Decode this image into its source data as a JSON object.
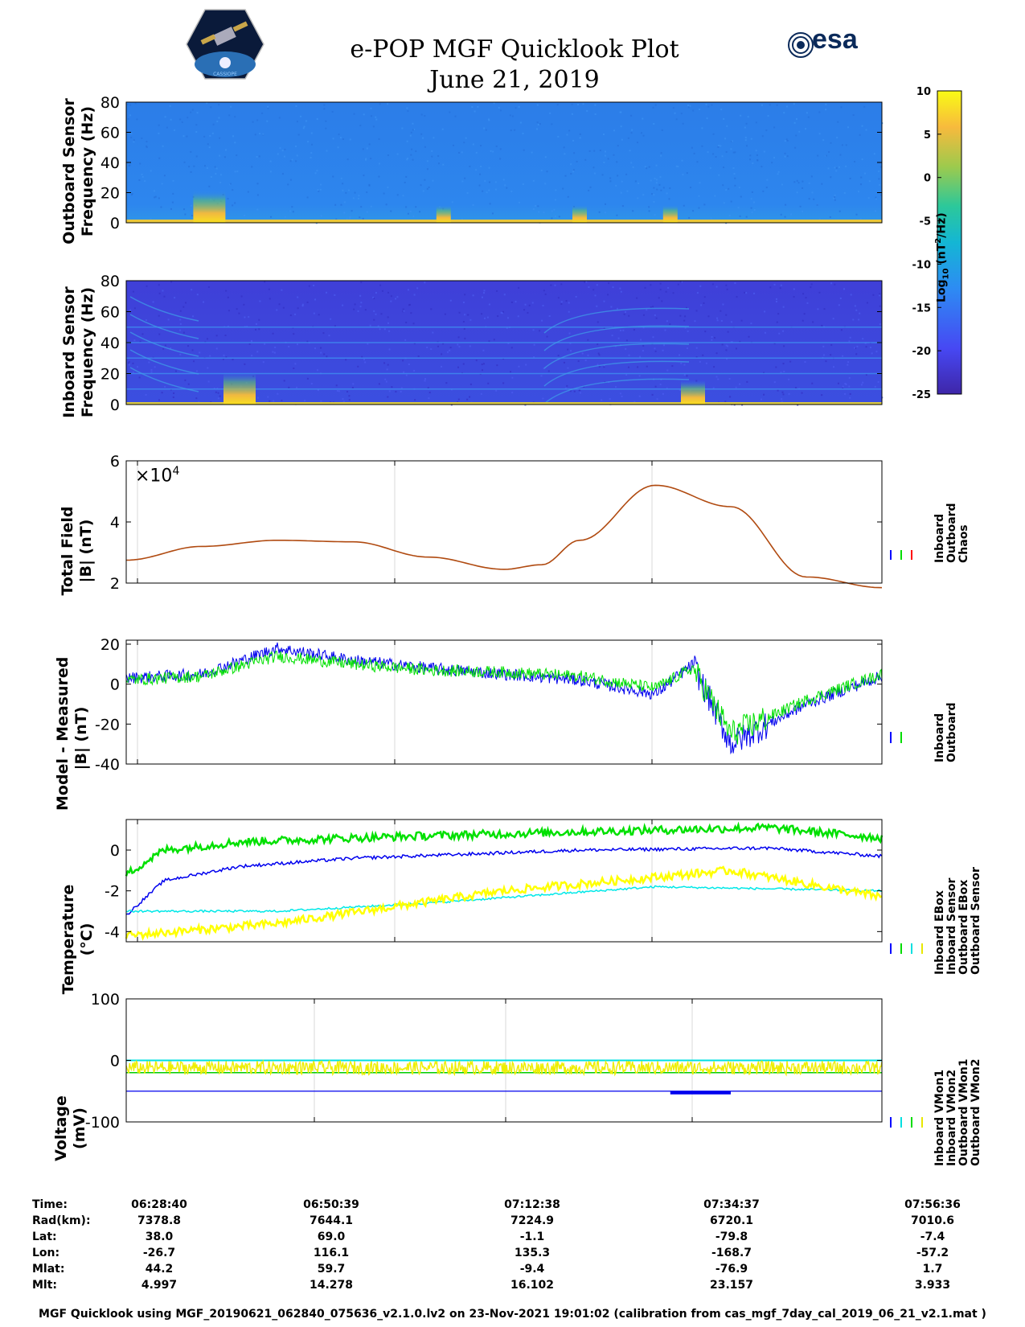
{
  "header": {
    "title": "e-POP MGF Quicklook Plot",
    "date": "June 21, 2019",
    "logo_left": "satellite-logo-icon",
    "logo_left_text": "CASSIOPE",
    "logo_right_text": "esa"
  },
  "colorbar": {
    "label_prefix": "Log",
    "label_sub": "10",
    "label_unit": " (nT",
    "label_sup": "2",
    "label_end": "/Hz)",
    "ticks": [
      "10",
      "5",
      "0",
      "-5",
      "-10",
      "-15",
      "-20",
      "-25"
    ],
    "range": [
      -25,
      10
    ],
    "colors": [
      "#3e26a8",
      "#4748f3",
      "#2d8cf3",
      "#14b6d4",
      "#2cc89a",
      "#9dca4d",
      "#f7ba3d",
      "#f9fb15"
    ]
  },
  "panels": {
    "outboard_spec": {
      "ylabel1": "Outboard Sensor",
      "ylabel2": "Frequency (Hz)",
      "yticks": [
        "80",
        "60",
        "40",
        "20",
        "0"
      ]
    },
    "inboard_spec": {
      "ylabel1": "Inboard Sensor",
      "ylabel2": "Frequency (Hz)",
      "yticks": [
        "80",
        "60",
        "40",
        "20",
        "0"
      ]
    },
    "total_field": {
      "ylabel1": "Total Field",
      "ylabel2": "|B| (nT)",
      "yticks": [
        "6",
        "4",
        "2"
      ],
      "multiplier_base": "×10",
      "multiplier_exp": "4",
      "legend": [
        "Inboard",
        "Outboard",
        "Chaos"
      ]
    },
    "model_measured": {
      "ylabel1": "Model - Measured",
      "ylabel2": "|B| (nT)",
      "yticks": [
        "20",
        "0",
        "-20",
        "-40"
      ],
      "legend": [
        "Inboard",
        "Outboard"
      ]
    },
    "temperature": {
      "ylabel1": "Temperature",
      "ylabel2": "(°C)",
      "yticks": [
        "0",
        "-2",
        "-4"
      ],
      "legend": [
        "Inboard EBox",
        "Inboard Sensor",
        "Outboard EBox",
        "Outboard Sensor"
      ]
    },
    "voltage": {
      "ylabel1": "Voltage",
      "ylabel2": "(mV)",
      "yticks": [
        "100",
        "0",
        "-100"
      ],
      "legend": [
        "Inboard VMon1",
        "Inboard VMon2",
        "Outboard VMon1",
        "Outboard VMon2"
      ]
    }
  },
  "chart_data": [
    {
      "type": "heatmap",
      "title": "Outboard Sensor spectrogram",
      "ylabel": "Outboard Sensor Frequency (Hz)",
      "ylim": [
        0,
        80
      ],
      "colorbar_range": [
        -25,
        10
      ],
      "background_level": -12,
      "bursts_time_fraction": [
        0.11,
        0.42,
        0.6,
        0.72
      ]
    },
    {
      "type": "heatmap",
      "title": "Inboard Sensor spectrogram",
      "ylabel": "Inboard Sensor Frequency (Hz)",
      "ylim": [
        0,
        80
      ],
      "colorbar_range": [
        -25,
        10
      ],
      "background_level": -20,
      "harmonic_lines_hz": [
        10,
        20,
        30,
        40,
        50
      ]
    },
    {
      "type": "line",
      "title": "Total Field",
      "ylabel": "|B| (nT)",
      "ylim": [
        20000,
        60000
      ],
      "series": [
        {
          "name": "Chaos",
          "x": [
            0,
            10,
            20,
            30,
            40,
            50,
            55,
            60,
            70,
            80,
            90,
            100
          ],
          "values": [
            27500,
            32000,
            34000,
            33500,
            28500,
            24500,
            26000,
            34000,
            52000,
            45000,
            22000,
            18500
          ]
        }
      ]
    },
    {
      "type": "line",
      "title": "Model - Measured",
      "ylabel": "|B| (nT)",
      "ylim": [
        -40,
        22
      ],
      "series": [
        {
          "name": "Inboard",
          "x": [
            0,
            10,
            20,
            30,
            40,
            50,
            60,
            70,
            75,
            80,
            90,
            100
          ],
          "values": [
            3,
            5,
            18,
            12,
            8,
            5,
            2,
            -5,
            10,
            -30,
            -10,
            4
          ]
        },
        {
          "name": "Outboard",
          "x": [
            0,
            10,
            20,
            30,
            40,
            50,
            60,
            70,
            75,
            80,
            90,
            100
          ],
          "values": [
            2,
            4,
            14,
            10,
            7,
            6,
            4,
            -2,
            8,
            -25,
            -8,
            5
          ]
        }
      ]
    },
    {
      "type": "line",
      "title": "Temperature",
      "ylabel": "(°C)",
      "ylim": [
        -4.5,
        1.5
      ],
      "series": [
        {
          "name": "Inboard EBox",
          "x": [
            0,
            5,
            15,
            30,
            60,
            85,
            100
          ],
          "values": [
            -3.2,
            -1.5,
            -0.8,
            -0.4,
            0,
            0.1,
            -0.3
          ]
        },
        {
          "name": "Inboard Sensor",
          "x": [
            0,
            5,
            15,
            30,
            60,
            85,
            100
          ],
          "values": [
            -1.2,
            0.0,
            0.4,
            0.6,
            0.9,
            1.1,
            0.6
          ]
        },
        {
          "name": "Outboard EBox",
          "x": [
            0,
            20,
            40,
            70,
            100
          ],
          "values": [
            -3.0,
            -3.0,
            -2.6,
            -1.8,
            -2.0
          ]
        },
        {
          "name": "Outboard Sensor",
          "x": [
            0,
            20,
            50,
            80,
            100
          ],
          "values": [
            -4.2,
            -3.6,
            -2.0,
            -1.0,
            -2.3
          ]
        }
      ]
    },
    {
      "type": "line",
      "title": "Voltage",
      "ylabel": "(mV)",
      "ylim": [
        -100,
        100
      ],
      "series": [
        {
          "name": "Inboard VMon1",
          "x": [
            0,
            100
          ],
          "values": [
            -50,
            -50
          ]
        },
        {
          "name": "Inboard VMon2",
          "x": [
            0,
            100
          ],
          "values": [
            -20,
            -20
          ]
        },
        {
          "name": "Outboard VMon1",
          "x": [
            0,
            100
          ],
          "values": [
            0,
            0
          ]
        },
        {
          "name": "Outboard VMon2",
          "x": [
            0,
            100
          ],
          "values": [
            -12,
            -12
          ]
        }
      ]
    }
  ],
  "table": {
    "labels": [
      "Time:",
      "Rad(km):",
      "Lat:",
      "Lon:",
      "Mlat:",
      "Mlt:"
    ],
    "columns": [
      [
        "06:28:40",
        "7378.8",
        "38.0",
        "-26.7",
        "44.2",
        "4.997"
      ],
      [
        "06:50:39",
        "7644.1",
        "69.0",
        "116.1",
        "59.7",
        "14.278"
      ],
      [
        "07:12:38",
        "7224.9",
        "-1.1",
        "135.3",
        "-9.4",
        "16.102"
      ],
      [
        "07:34:37",
        "6720.1",
        "-79.8",
        "-168.7",
        "-76.9",
        "23.157"
      ],
      [
        "07:56:36",
        "7010.6",
        "-7.4",
        "-57.2",
        "1.7",
        "3.933"
      ]
    ]
  },
  "footer": "MGF Quicklook using MGF_20190621_062840_075636_v2.1.0.lv2 on 23-Nov-2021 19:01:02 (calibration from cas_mgf_7day_cal_2019_06_21_v2.1.mat )"
}
